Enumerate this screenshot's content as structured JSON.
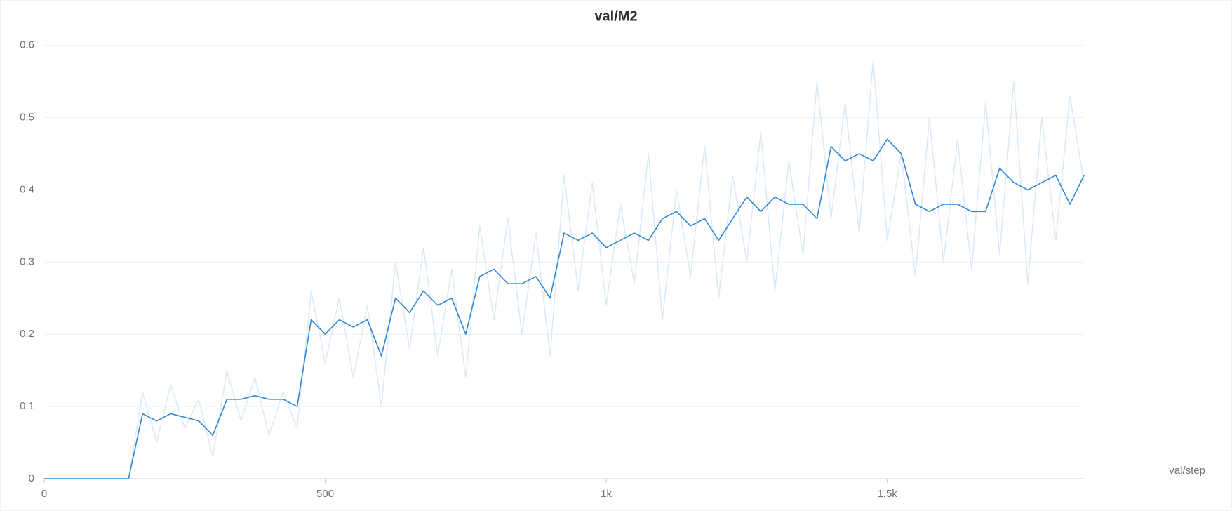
{
  "chart_data": {
    "type": "line",
    "title": "val/M2",
    "x_label": "val/step",
    "x": [
      0,
      25,
      50,
      75,
      100,
      125,
      150,
      175,
      200,
      225,
      250,
      275,
      300,
      325,
      350,
      375,
      400,
      425,
      450,
      475,
      500,
      525,
      550,
      575,
      600,
      625,
      650,
      675,
      700,
      725,
      750,
      775,
      800,
      825,
      850,
      875,
      900,
      925,
      950,
      975,
      1000,
      1025,
      1050,
      1075,
      1100,
      1125,
      1150,
      1175,
      1200,
      1225,
      1250,
      1275,
      1300,
      1325,
      1350,
      1375,
      1400,
      1425,
      1450,
      1475,
      1500,
      1525,
      1550,
      1575,
      1600,
      1625,
      1650,
      1675,
      1700,
      1725,
      1750,
      1775,
      1800,
      1825,
      1850
    ],
    "series": [
      {
        "color": "#dbe9f8",
        "values": [
          0,
          0,
          0,
          0,
          0,
          0,
          0,
          0.12,
          0.05,
          0.13,
          0.07,
          0.11,
          0.03,
          0.15,
          0.08,
          0.14,
          0.06,
          0.12,
          0.07,
          0.26,
          0.16,
          0.25,
          0.14,
          0.24,
          0.1,
          0.3,
          0.18,
          0.32,
          0.17,
          0.29,
          0.14,
          0.35,
          0.22,
          0.36,
          0.2,
          0.34,
          0.17,
          0.42,
          0.26,
          0.41,
          0.24,
          0.38,
          0.27,
          0.45,
          0.22,
          0.4,
          0.28,
          0.46,
          0.25,
          0.42,
          0.3,
          0.48,
          0.26,
          0.44,
          0.31,
          0.55,
          0.36,
          0.52,
          0.34,
          0.58,
          0.33,
          0.45,
          0.28,
          0.5,
          0.3,
          0.47,
          0.29,
          0.52,
          0.31,
          0.55,
          0.27,
          0.5,
          0.33,
          0.53,
          0.41
        ]
      },
      {
        "color": "#2f88d6",
        "values": [
          0,
          0,
          0,
          0,
          0,
          0,
          0,
          0.09,
          0.08,
          0.09,
          0.085,
          0.08,
          0.06,
          0.11,
          0.11,
          0.115,
          0.11,
          0.11,
          0.1,
          0.22,
          0.2,
          0.22,
          0.21,
          0.22,
          0.17,
          0.25,
          0.23,
          0.26,
          0.24,
          0.25,
          0.2,
          0.28,
          0.29,
          0.27,
          0.27,
          0.28,
          0.25,
          0.34,
          0.33,
          0.34,
          0.32,
          0.33,
          0.34,
          0.33,
          0.36,
          0.37,
          0.35,
          0.36,
          0.33,
          0.36,
          0.39,
          0.37,
          0.39,
          0.38,
          0.38,
          0.36,
          0.46,
          0.44,
          0.45,
          0.44,
          0.47,
          0.45,
          0.38,
          0.37,
          0.38,
          0.38,
          0.37,
          0.37,
          0.43,
          0.41,
          0.4,
          0.41,
          0.42,
          0.38,
          0.42
        ]
      }
    ],
    "xlim": [
      0,
      1850
    ],
    "ylim": [
      0,
      0.62
    ],
    "xticks": [
      0,
      500,
      {
        "value": 1000,
        "label": "1k"
      },
      {
        "value": 1500,
        "label": "1.5k"
      }
    ],
    "yticks": [
      0,
      0.1,
      0.2,
      0.3,
      0.4,
      0.5,
      0.6
    ],
    "grid": true
  }
}
